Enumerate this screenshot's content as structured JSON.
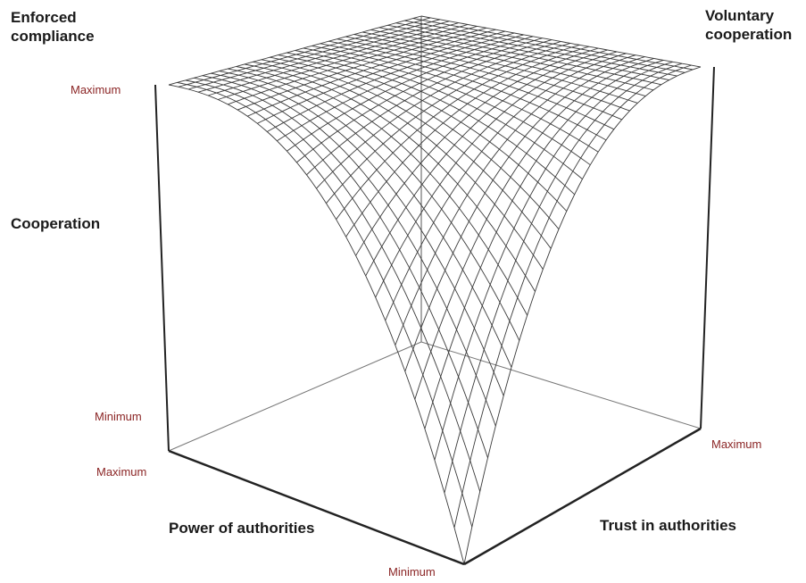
{
  "labels": {
    "enforced_compliance": "Enforced\ncompliance",
    "voluntary_cooperation": "Voluntary\ncooperation"
  },
  "axes": {
    "z": {
      "title": "Cooperation",
      "min_label": "Minimum",
      "max_label": "Maximum"
    },
    "power": {
      "title": "Power of authorities",
      "min_label": "Minimum",
      "max_label": "Maximum"
    },
    "trust": {
      "title": "Trust in authorities",
      "min_label": "Minimum",
      "max_label": "Maximum"
    }
  },
  "colors": {
    "mesh": "#3a3a3a",
    "box": "#222222",
    "tick_text": "#8b2525"
  }
}
